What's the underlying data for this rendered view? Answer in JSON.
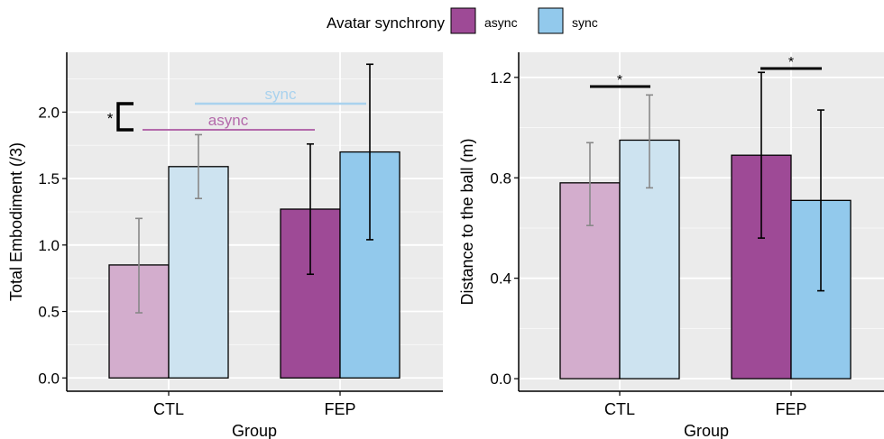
{
  "legend": {
    "title": "Avatar synchrony",
    "items": [
      {
        "label": "async",
        "color": "#9e4a96"
      },
      {
        "label": "sync",
        "color": "#92c9ec"
      }
    ]
  },
  "chart_data": [
    {
      "type": "bar",
      "xlabel": "Group",
      "ylabel": "Total Embodiment (/3)",
      "categories": [
        "CTL",
        "FEP"
      ],
      "ylim": [
        -0.1,
        2.45
      ],
      "yticks": [
        0.0,
        0.5,
        1.0,
        1.5,
        2.0
      ],
      "ytick_labels": [
        "0.0",
        "0.5",
        "1.0",
        "1.5",
        "2.0"
      ],
      "grid": true,
      "series": [
        {
          "name": "async",
          "values": [
            0.85,
            1.27
          ],
          "err_low": [
            0.49,
            0.78
          ],
          "err_high": [
            1.2,
            1.76
          ]
        },
        {
          "name": "sync",
          "values": [
            1.59,
            1.7
          ],
          "err_low": [
            1.35,
            1.04
          ],
          "err_high": [
            1.83,
            2.36
          ]
        }
      ],
      "annotations": {
        "sync_line_label": "sync",
        "async_line_label": "async",
        "bracket_star": "*"
      }
    },
    {
      "type": "bar",
      "xlabel": "Group",
      "ylabel": "Distance to the ball (m)",
      "categories": [
        "CTL",
        "FEP"
      ],
      "ylim": [
        -0.05,
        1.3
      ],
      "yticks": [
        0.0,
        0.4,
        0.8,
        1.2
      ],
      "ytick_labels": [
        "0.0",
        "0.4",
        "0.8",
        "1.2"
      ],
      "grid": true,
      "series": [
        {
          "name": "async",
          "values": [
            0.78,
            0.89
          ],
          "err_low": [
            0.61,
            0.56
          ],
          "err_high": [
            0.94,
            1.22
          ]
        },
        {
          "name": "sync",
          "values": [
            0.95,
            0.71
          ],
          "err_low": [
            0.76,
            0.35
          ],
          "err_high": [
            1.13,
            1.07
          ]
        }
      ],
      "annotations": {
        "ctl_star": "*",
        "fep_star": "*"
      }
    }
  ]
}
